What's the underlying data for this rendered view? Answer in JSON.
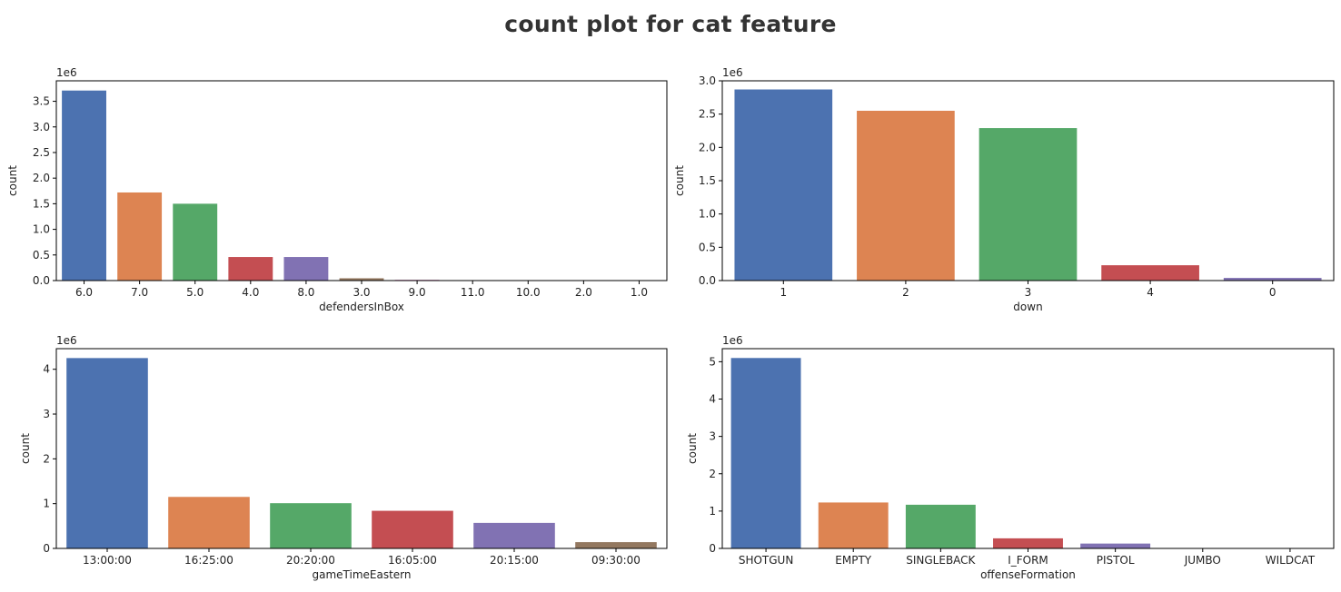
{
  "suptitle": "count plot for cat feature",
  "palette": [
    "#4c72b0",
    "#dd8452",
    "#55a868",
    "#c44e52",
    "#8172b3",
    "#937860",
    "#da8bc3",
    "#8c8c8c",
    "#ccb974",
    "#64b5cd",
    "#4c72b0"
  ],
  "chart_data": [
    {
      "type": "bar",
      "xlabel": "defendersInBox",
      "ylabel": "count",
      "offset_text": "1e6",
      "categories": [
        "6.0",
        "7.0",
        "5.0",
        "4.0",
        "8.0",
        "3.0",
        "9.0",
        "11.0",
        "10.0",
        "2.0",
        "1.0"
      ],
      "values": [
        3.71,
        1.72,
        1.5,
        0.46,
        0.46,
        0.045,
        0.015,
        0.003,
        0.002,
        0.001,
        0.0005
      ],
      "ylim": [
        0,
        3.9
      ],
      "yticks": [
        0.0,
        0.5,
        1.0,
        1.5,
        2.0,
        2.5,
        3.0,
        3.5
      ],
      "ytick_labels": [
        "0.0",
        "0.5",
        "1.0",
        "1.5",
        "2.0",
        "2.5",
        "3.0",
        "3.5"
      ]
    },
    {
      "type": "bar",
      "xlabel": "down",
      "ylabel": "count",
      "offset_text": "1e6",
      "categories": [
        "1",
        "2",
        "3",
        "4",
        "0"
      ],
      "values": [
        2.87,
        2.55,
        2.29,
        0.23,
        0.04
      ],
      "ylim": [
        0,
        3.0
      ],
      "yticks": [
        0.0,
        0.5,
        1.0,
        1.5,
        2.0,
        2.5,
        3.0
      ],
      "ytick_labels": [
        "0.0",
        "0.5",
        "1.0",
        "1.5",
        "2.0",
        "2.5",
        "3.0"
      ]
    },
    {
      "type": "bar",
      "xlabel": "gameTimeEastern",
      "ylabel": "count",
      "offset_text": "1e6",
      "categories": [
        "13:00:00",
        "16:25:00",
        "20:20:00",
        "16:05:00",
        "20:15:00",
        "09:30:00"
      ],
      "values": [
        4.25,
        1.15,
        1.01,
        0.84,
        0.57,
        0.14
      ],
      "ylim": [
        0,
        4.46
      ],
      "yticks": [
        0,
        1,
        2,
        3,
        4
      ],
      "ytick_labels": [
        "0",
        "1",
        "2",
        "3",
        "4"
      ]
    },
    {
      "type": "bar",
      "xlabel": "offenseFormation",
      "ylabel": "count",
      "offset_text": "1e6",
      "categories": [
        "SHOTGUN",
        "EMPTY",
        "SINGLEBACK",
        "I_FORM",
        "PISTOL",
        "JUMBO",
        "WILDCAT"
      ],
      "values": [
        5.1,
        1.23,
        1.17,
        0.27,
        0.13,
        0.005,
        0.003
      ],
      "ylim": [
        0,
        5.35
      ],
      "yticks": [
        0,
        1,
        2,
        3,
        4,
        5
      ],
      "ytick_labels": [
        "0",
        "1",
        "2",
        "3",
        "4",
        "5"
      ]
    }
  ]
}
